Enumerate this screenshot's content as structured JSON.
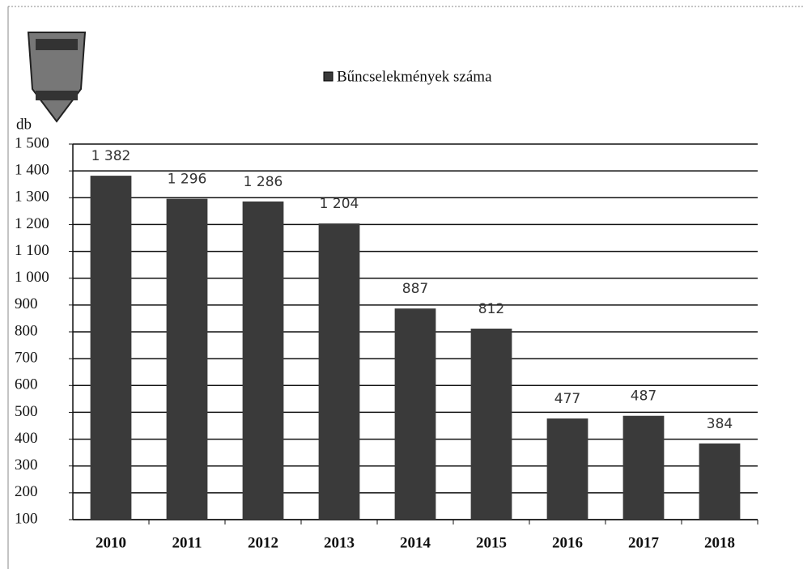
{
  "chart_data": {
    "type": "bar",
    "y_label": "db",
    "categories": [
      "2010",
      "2011",
      "2012",
      "2013",
      "2014",
      "2015",
      "2016",
      "2017",
      "2018"
    ],
    "series": [
      {
        "name": "Bűncselekmények száma",
        "color": "#3a3a3a",
        "values": [
          1382,
          1296,
          1286,
          1204,
          887,
          812,
          477,
          487,
          384
        ],
        "value_labels": [
          "1 382",
          "1 296",
          "1 286",
          "1 204",
          "887",
          "812",
          "477",
          "487",
          "384"
        ]
      }
    ],
    "ylim": [
      100,
      1500
    ],
    "yticks": [
      100,
      200,
      300,
      400,
      500,
      600,
      700,
      800,
      900,
      {
        "value": 1000,
        "label": "1 000"
      },
      {
        "value": 1100,
        "label": "1 100"
      },
      {
        "value": 1200,
        "label": "1 200"
      },
      {
        "value": 1300,
        "label": "1 300"
      },
      {
        "value": 1400,
        "label": "1 400"
      },
      {
        "value": 1500,
        "label": "1 500"
      }
    ],
    "grid": true,
    "legend": "top"
  }
}
